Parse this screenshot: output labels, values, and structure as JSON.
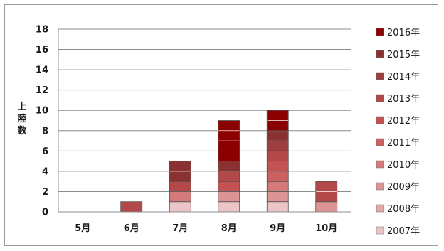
{
  "chart_data": {
    "type": "bar",
    "stacked": true,
    "title": "",
    "xlabel": "",
    "ylabel": "上陸数",
    "ylabel_chars": [
      "上",
      "陸",
      "数"
    ],
    "ylim": [
      0,
      18
    ],
    "yticks": [
      0,
      2,
      4,
      6,
      8,
      10,
      12,
      14,
      16,
      18
    ],
    "grid": true,
    "legend_position": "right",
    "categories": [
      "5月",
      "6月",
      "7月",
      "8月",
      "9月",
      "10月"
    ],
    "series": [
      {
        "name": "2007年",
        "color": "#ecc6c6",
        "values": [
          0,
          0,
          1,
          1,
          1,
          0
        ]
      },
      {
        "name": "2008年",
        "color": "#e3a8a8",
        "values": [
          0,
          0,
          0,
          0,
          0,
          0
        ]
      },
      {
        "name": "2009年",
        "color": "#dc9494",
        "values": [
          0,
          0,
          0,
          1,
          1,
          1
        ]
      },
      {
        "name": "2010年",
        "color": "#d57a7a",
        "values": [
          0,
          0,
          1,
          0,
          1,
          0
        ]
      },
      {
        "name": "2011年",
        "color": "#cc6161",
        "values": [
          0,
          0,
          0,
          0,
          1,
          0
        ]
      },
      {
        "name": "2012年",
        "color": "#c45252",
        "values": [
          0,
          0,
          0,
          1,
          1,
          0
        ]
      },
      {
        "name": "2013年",
        "color": "#b24848",
        "values": [
          0,
          1,
          1,
          1,
          1,
          2
        ]
      },
      {
        "name": "2014年",
        "color": "#9e3e3e",
        "values": [
          0,
          0,
          0,
          0,
          1,
          0
        ]
      },
      {
        "name": "2015年",
        "color": "#8a3232",
        "values": [
          0,
          0,
          2,
          1,
          1,
          0
        ]
      },
      {
        "name": "2016年",
        "color": "#8b0000",
        "values": [
          0,
          0,
          0,
          4,
          2,
          0
        ]
      }
    ]
  }
}
